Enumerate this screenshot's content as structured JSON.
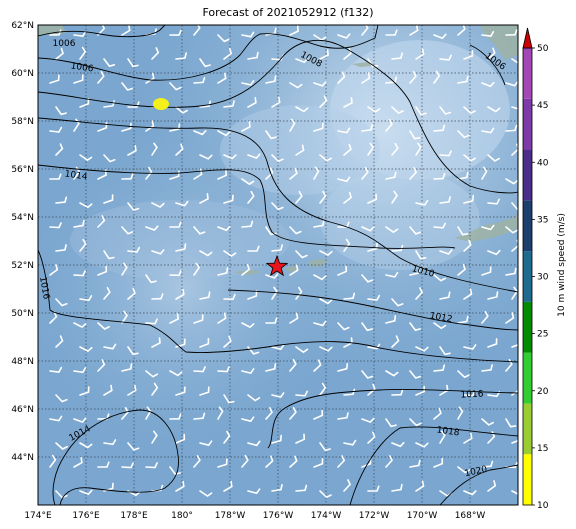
{
  "title": "Forecast of 2021052912 (f132)",
  "map": {
    "lat_labels": [
      "62°N",
      "60°N",
      "58°N",
      "56°N",
      "54°N",
      "52°N",
      "50°N",
      "48°N",
      "46°N",
      "44°N"
    ],
    "lon_labels": [
      "174°E",
      "176°E",
      "178°E",
      "180°",
      "178°W",
      "176°W",
      "174°W",
      "172°W",
      "170°W",
      "168°W"
    ],
    "lat_range": [
      42.0,
      62.0
    ],
    "lon_range_east": [
      174.0,
      194.0
    ],
    "storm_marker_icon": "red-star-icon",
    "storm_marker_position": {
      "lat": 52.1,
      "lon_east": 184.0
    },
    "highlight_marker": {
      "lat": 58.8,
      "lon_east": 179.0,
      "color": "#f5f019"
    },
    "isobars": [
      {
        "label": "1006"
      },
      {
        "label": "1006"
      },
      {
        "label": "1008"
      },
      {
        "label": "1006"
      },
      {
        "label": "1014"
      },
      {
        "label": "1010"
      },
      {
        "label": "1016"
      },
      {
        "label": "1012"
      },
      {
        "label": "1016"
      },
      {
        "label": "1014"
      },
      {
        "label": "1018"
      },
      {
        "label": "1020"
      }
    ]
  },
  "colorbar": {
    "label": "10 m wind speed (m/s)",
    "ticks": [
      "10",
      "15",
      "20",
      "25",
      "30",
      "35",
      "40",
      "45",
      "50"
    ],
    "colors": [
      "#ffff00",
      "#9acd32",
      "#32cd32",
      "#008b00",
      "#1e6b8f",
      "#1c3f6e",
      "#4b2c8a",
      "#7e3aa8",
      "#a347b7"
    ],
    "extend_color": "#cc0000"
  }
}
